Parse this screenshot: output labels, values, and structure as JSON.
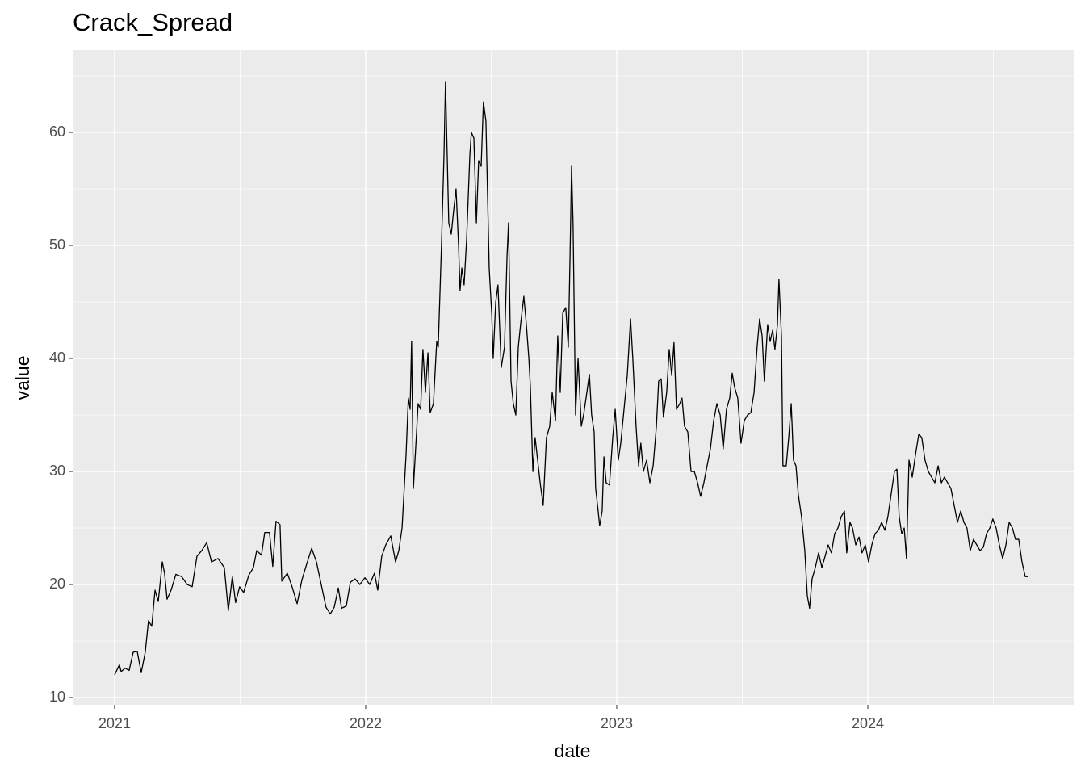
{
  "chart_data": {
    "type": "line",
    "title": "Crack_Spread",
    "x_label": "date",
    "y_label": "value",
    "xlim": [
      2020.833,
      2024.82
    ],
    "ylim": [
      9.36,
      67.29
    ],
    "xticks": [
      2021,
      2022,
      2023,
      2024
    ],
    "yticks": [
      10,
      20,
      30,
      40,
      50,
      60
    ],
    "grid": true,
    "minor_grid": true,
    "background": "#ebebeb",
    "series": [
      {
        "color": "#000000",
        "x": [
          2021.0,
          2021.019,
          2021.026,
          2021.042,
          2021.058,
          2021.074,
          2021.09,
          2021.106,
          2021.122,
          2021.135,
          2021.148,
          2021.161,
          2021.174,
          2021.19,
          2021.199,
          2021.209,
          2021.225,
          2021.244,
          2021.267,
          2021.289,
          2021.309,
          2021.328,
          2021.347,
          2021.367,
          2021.386,
          2021.412,
          2021.437,
          2021.453,
          2021.469,
          2021.482,
          2021.498,
          2021.514,
          2021.534,
          2021.553,
          2021.566,
          2021.585,
          2021.598,
          2021.617,
          2021.63,
          2021.643,
          2021.659,
          2021.666,
          2021.688,
          2021.707,
          2021.727,
          2021.746,
          2021.765,
          2021.785,
          2021.804,
          2021.823,
          2021.842,
          2021.859,
          2021.875,
          2021.891,
          2021.904,
          2021.923,
          2021.939,
          2021.958,
          2021.977,
          2021.997,
          2022.016,
          2022.035,
          2022.048,
          2022.064,
          2022.08,
          2022.1,
          2022.119,
          2022.132,
          2022.145,
          2022.161,
          2022.17,
          2022.177,
          2022.183,
          2022.19,
          2022.199,
          2022.209,
          2022.219,
          2022.228,
          2022.238,
          2022.248,
          2022.257,
          2022.27,
          2022.283,
          2022.289,
          2022.302,
          2022.312,
          2022.318,
          2022.331,
          2022.341,
          2022.35,
          2022.36,
          2022.37,
          2022.376,
          2022.383,
          2022.392,
          2022.402,
          2022.415,
          2022.421,
          2022.431,
          2022.441,
          2022.45,
          2022.46,
          2022.469,
          2022.479,
          2022.492,
          2022.502,
          2022.508,
          2022.518,
          2022.527,
          2022.54,
          2022.553,
          2022.563,
          2022.569,
          2022.579,
          2022.588,
          2022.598,
          2022.608,
          2022.617,
          2022.63,
          2022.64,
          2022.65,
          2022.656,
          2022.666,
          2022.675,
          2022.685,
          2022.695,
          2022.707,
          2022.72,
          2022.733,
          2022.743,
          2022.756,
          2022.765,
          2022.775,
          2022.785,
          2022.797,
          2022.807,
          2022.814,
          2022.82,
          2022.826,
          2022.836,
          2022.846,
          2022.859,
          2022.868,
          2022.881,
          2022.891,
          2022.9,
          2022.91,
          2022.916,
          2022.926,
          2022.932,
          2022.942,
          2022.949,
          2022.958,
          2022.971,
          2022.984,
          2022.994,
          2023.006,
          2023.016,
          2023.029,
          2023.042,
          2023.055,
          2023.064,
          2023.077,
          2023.087,
          2023.096,
          2023.106,
          2023.119,
          2023.132,
          2023.145,
          2023.158,
          2023.167,
          2023.177,
          2023.186,
          2023.199,
          2023.209,
          2023.219,
          2023.228,
          2023.238,
          2023.251,
          2023.26,
          2023.27,
          2023.283,
          2023.296,
          2023.309,
          2023.322,
          2023.334,
          2023.347,
          2023.36,
          2023.373,
          2023.386,
          2023.399,
          2023.412,
          2023.424,
          2023.437,
          2023.45,
          2023.46,
          2023.469,
          2023.482,
          2023.495,
          2023.508,
          2023.521,
          2023.534,
          2023.547,
          2023.559,
          2023.569,
          2023.579,
          2023.588,
          2023.601,
          2023.611,
          2023.621,
          2023.63,
          2023.64,
          2023.646,
          2023.656,
          2023.662,
          2023.675,
          2023.685,
          2023.695,
          2023.704,
          2023.714,
          2023.723,
          2023.736,
          2023.749,
          2023.759,
          2023.768,
          2023.778,
          2023.791,
          2023.804,
          2023.817,
          2023.83,
          2023.842,
          2023.855,
          2023.868,
          2023.881,
          2023.894,
          2023.907,
          2023.916,
          2023.929,
          2023.939,
          2023.952,
          2023.965,
          2023.977,
          2023.99,
          2024.003,
          2024.016,
          2024.029,
          2024.042,
          2024.055,
          2024.068,
          2024.08,
          2024.093,
          2024.106,
          2024.116,
          2024.125,
          2024.135,
          2024.145,
          2024.154,
          2024.164,
          2024.177,
          2024.19,
          2024.203,
          2024.215,
          2024.228,
          2024.241,
          2024.254,
          2024.267,
          2024.28,
          2024.293,
          2024.305,
          2024.318,
          2024.331,
          2024.344,
          2024.357,
          2024.37,
          2024.383,
          2024.395,
          2024.408,
          2024.421,
          2024.434,
          2024.447,
          2024.46,
          2024.473,
          2024.486,
          2024.498,
          2024.511,
          2024.524,
          2024.537,
          2024.55,
          2024.563,
          2024.576,
          2024.588,
          2024.601,
          2024.614,
          2024.627,
          2024.637
        ],
        "values": [
          12.0,
          12.9,
          12.3,
          12.6,
          12.4,
          14.0,
          14.1,
          12.2,
          14.0,
          16.8,
          16.3,
          19.5,
          18.5,
          22.0,
          21.0,
          18.7,
          19.5,
          20.9,
          20.7,
          20.0,
          19.8,
          22.5,
          23.0,
          23.7,
          22.0,
          22.3,
          21.5,
          17.7,
          20.7,
          18.4,
          19.8,
          19.3,
          20.8,
          21.5,
          23.0,
          22.6,
          24.6,
          24.6,
          21.6,
          25.6,
          25.3,
          20.3,
          21.0,
          19.8,
          18.3,
          20.4,
          21.8,
          23.2,
          22.0,
          20.0,
          18.0,
          17.4,
          18.0,
          19.7,
          17.9,
          18.1,
          20.2,
          20.5,
          20.0,
          20.6,
          20.0,
          21.0,
          19.5,
          22.5,
          23.5,
          24.3,
          22.0,
          23.0,
          25.0,
          31.5,
          36.5,
          35.5,
          41.5,
          28.5,
          32.0,
          36.0,
          35.5,
          40.8,
          37.0,
          40.5,
          35.2,
          36.0,
          41.5,
          41.0,
          50.0,
          58.0,
          64.5,
          52.0,
          51.0,
          53.0,
          55.0,
          50.0,
          46.0,
          48.0,
          46.5,
          50.5,
          58.0,
          60.0,
          59.5,
          52.0,
          57.5,
          57.0,
          62.7,
          61.0,
          48.0,
          44.0,
          40.0,
          45.0,
          46.5,
          39.2,
          41.0,
          49.0,
          52.0,
          38.0,
          36.0,
          35.0,
          41.0,
          43.0,
          45.5,
          43.0,
          40.0,
          37.5,
          30.0,
          33.0,
          31.0,
          29.0,
          27.0,
          33.0,
          34.0,
          37.0,
          34.5,
          42.0,
          37.0,
          44.0,
          44.5,
          41.0,
          49.0,
          57.0,
          52.0,
          35.0,
          40.0,
          34.0,
          35.0,
          37.0,
          38.6,
          35.0,
          33.5,
          28.5,
          26.5,
          25.2,
          26.5,
          31.3,
          29.0,
          28.8,
          33.0,
          35.5,
          31.0,
          32.5,
          35.5,
          38.5,
          43.5,
          40.0,
          34.0,
          30.5,
          32.5,
          30.0,
          31.0,
          29.0,
          30.5,
          34.0,
          38.0,
          38.2,
          34.8,
          37.0,
          40.8,
          38.5,
          41.4,
          35.5,
          36.0,
          36.5,
          34.0,
          33.5,
          30.0,
          30.0,
          29.0,
          27.8,
          29.0,
          30.5,
          32.0,
          34.5,
          36.0,
          35.0,
          32.0,
          35.5,
          36.5,
          38.7,
          37.5,
          36.5,
          32.5,
          34.5,
          35.0,
          35.2,
          37.0,
          41.0,
          43.5,
          42.0,
          38.0,
          43.0,
          41.5,
          42.5,
          40.8,
          43.0,
          47.0,
          42.0,
          30.5,
          30.5,
          33.0,
          36.0,
          31.0,
          30.5,
          28.0,
          26.0,
          23.0,
          19.0,
          17.9,
          20.5,
          21.5,
          22.8,
          21.5,
          22.5,
          23.5,
          22.8,
          24.5,
          25.0,
          26.0,
          26.5,
          22.8,
          25.5,
          25.0,
          23.5,
          24.2,
          22.8,
          23.5,
          22.0,
          23.5,
          24.5,
          24.8,
          25.5,
          24.8,
          26.0,
          28.0,
          30.0,
          30.2,
          26.0,
          24.5,
          25.0,
          22.3,
          31.0,
          29.5,
          31.5,
          33.3,
          33.0,
          31.0,
          30.0,
          29.5,
          29.0,
          30.5,
          29.0,
          29.5,
          29.0,
          28.5,
          27.0,
          25.5,
          26.5,
          25.5,
          25.0,
          23.0,
          24.0,
          23.5,
          23.0,
          23.3,
          24.5,
          25.0,
          25.8,
          25.0,
          23.5,
          22.3,
          23.5,
          25.5,
          25.0,
          24.0,
          24.0,
          22.0,
          20.7,
          20.7
        ]
      }
    ]
  }
}
